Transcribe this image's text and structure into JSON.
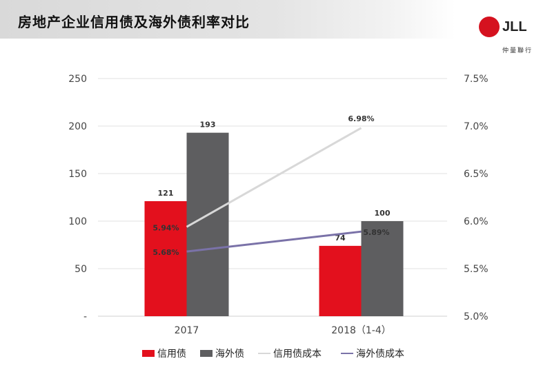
{
  "header": {
    "title": "房地产企业信用债及海外债利率对比"
  },
  "logo": {
    "text": "JLL",
    "subtitle": "仲量聯行"
  },
  "colors": {
    "credit_bond": "#e3101d",
    "overseas_bond": "#5e5e60",
    "credit_cost": "#d8d8d8",
    "overseas_cost": "#7a72a8",
    "grid": "#e0e0e0"
  },
  "chart_data": {
    "type": "bar",
    "categories": [
      "2017",
      "2018（1-4）"
    ],
    "series": [
      {
        "name": "信用债",
        "kind": "bar",
        "axis": "left",
        "values": [
          121,
          74
        ],
        "labels": [
          "121",
          "74"
        ]
      },
      {
        "name": "海外债",
        "kind": "bar",
        "axis": "left",
        "values": [
          193,
          100
        ],
        "labels": [
          "193",
          "100"
        ]
      },
      {
        "name": "信用债成本",
        "kind": "line",
        "axis": "right",
        "values": [
          5.94,
          6.98
        ],
        "labels": [
          "5.94%",
          "6.98%"
        ]
      },
      {
        "name": "海外债成本",
        "kind": "line",
        "axis": "right",
        "values": [
          5.68,
          5.89
        ],
        "labels": [
          "5.68%",
          "5.89%"
        ]
      }
    ],
    "y_left": {
      "ylim": [
        0,
        250
      ],
      "ticks": [
        "-",
        "50",
        "100",
        "150",
        "200",
        "250"
      ]
    },
    "y_right": {
      "ylim": [
        5.0,
        7.5
      ],
      "ticks": [
        "5.0%",
        "5.5%",
        "6.0%",
        "6.5%",
        "7.0%",
        "7.5%"
      ]
    },
    "grid": true,
    "legend": "bottom"
  }
}
